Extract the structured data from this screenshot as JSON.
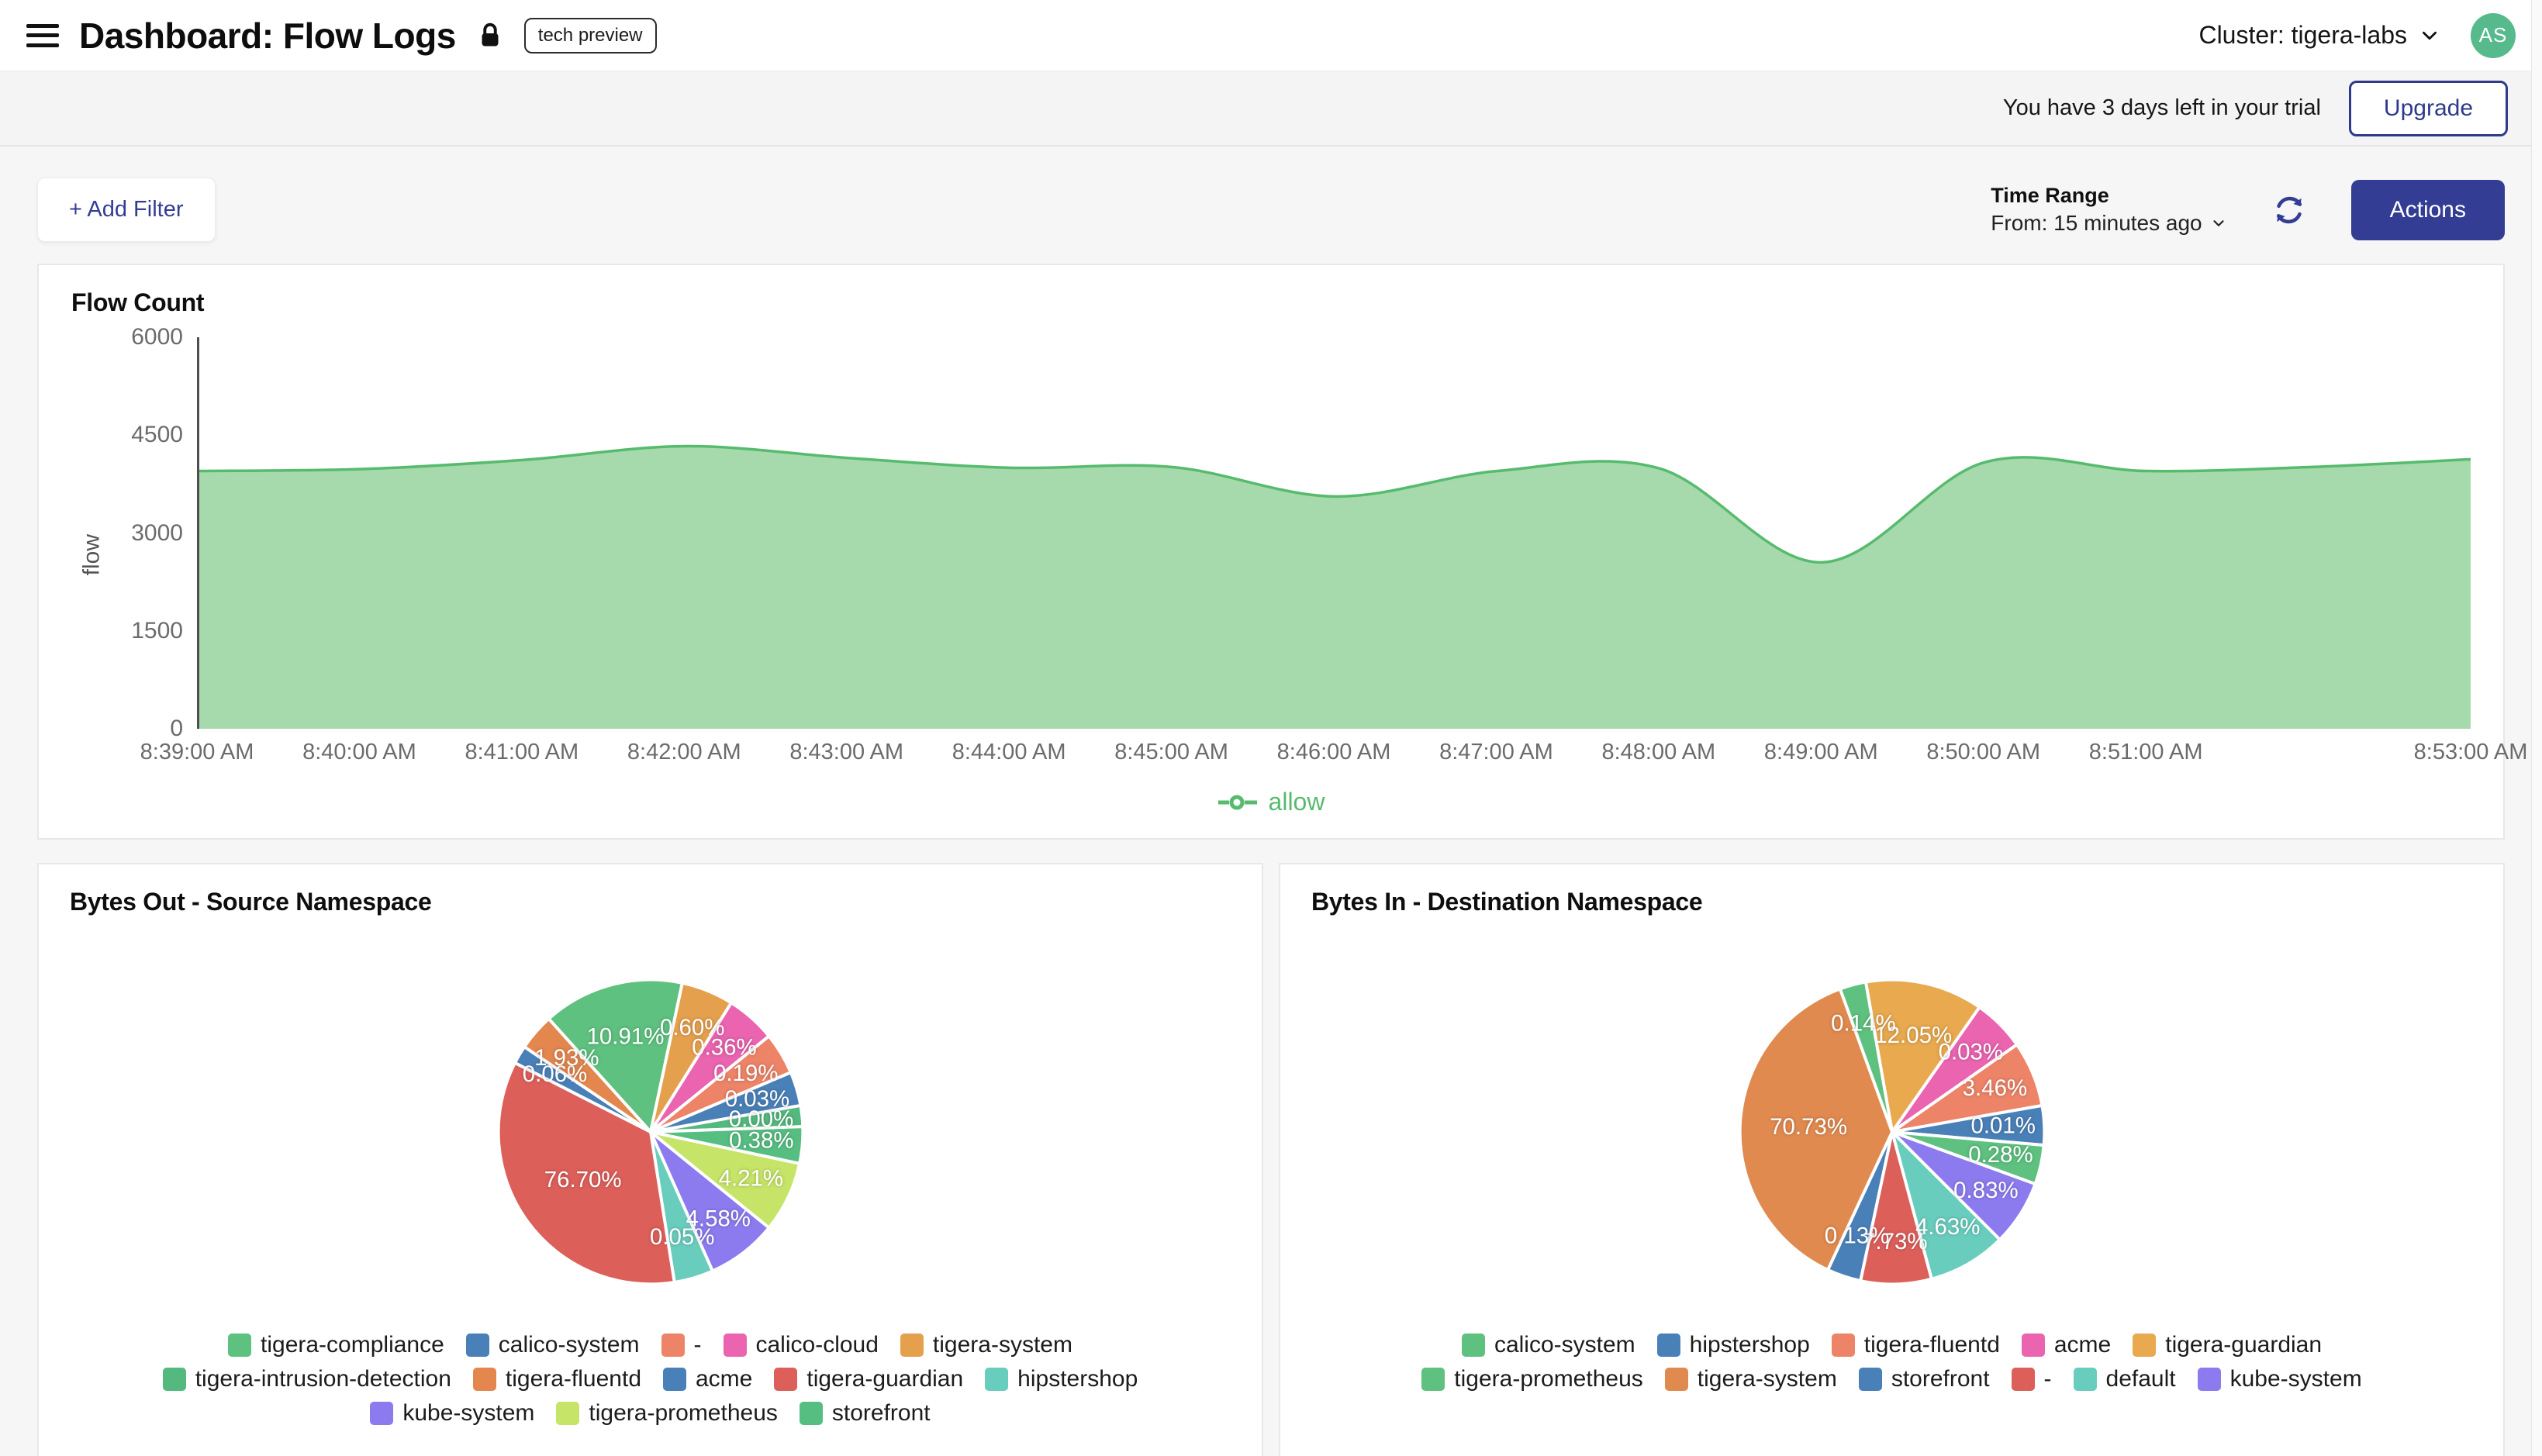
{
  "header": {
    "title": "Dashboard: Flow Logs",
    "badge": "tech preview",
    "cluster_label": "Cluster: tigera-labs",
    "avatar_initials": "AS"
  },
  "trial": {
    "message": "You have 3 days left in your trial",
    "upgrade_label": "Upgrade"
  },
  "toolbar": {
    "add_filter_label": "+ Add Filter",
    "time_range_title": "Time Range",
    "time_range_value": "From: 15 minutes ago",
    "actions_label": "Actions"
  },
  "colors": {
    "accent_navy": "#333d94",
    "avatar_green": "#56ba8d",
    "allow_green": "#57bb6e",
    "area_fill": "#a6daad"
  },
  "chart_data": [
    {
      "type": "area",
      "title": "Flow Count",
      "ylabel": "flow",
      "ylim": [
        0,
        6000
      ],
      "yticks": [
        6000,
        4500,
        3000,
        1500,
        0
      ],
      "grid": false,
      "legend_position": "bottom",
      "x_minutes_span": 14,
      "x_tick_labels": [
        "8:39:00 AM",
        "8:40:00 AM",
        "8:41:00 AM",
        "8:42:00 AM",
        "8:43:00 AM",
        "8:44:00 AM",
        "8:45:00 AM",
        "8:46:00 AM",
        "8:47:00 AM",
        "8:48:00 AM",
        "8:49:00 AM",
        "8:50:00 AM",
        "8:51:00 AM",
        "8:53:00 AM"
      ],
      "x_tick_positions": [
        0,
        1,
        2,
        3,
        4,
        5,
        6,
        7,
        8,
        9,
        10,
        11,
        12,
        14
      ],
      "series": [
        {
          "name": "allow",
          "color": "#57bb6e",
          "fill": "#a6daad",
          "x": [
            0,
            1,
            2,
            3,
            4,
            5,
            6,
            7,
            8,
            9,
            10,
            11,
            12,
            13,
            14
          ],
          "values": [
            3950,
            3980,
            4120,
            4330,
            4150,
            4000,
            4010,
            3560,
            3950,
            3990,
            2550,
            4080,
            3950,
            4010,
            4130
          ]
        }
      ],
      "legend": {
        "label": "allow",
        "color": "#57bb6e"
      }
    },
    {
      "type": "pie",
      "title": "Bytes Out - Source Namespace",
      "start_angle": -42,
      "slices": [
        {
          "name": "tigera-compliance",
          "pct": "10.91%",
          "value": 10.91,
          "color": "#5ec17f",
          "sweep": 54
        },
        {
          "name": "tigera-system",
          "pct": "0.60%",
          "value": 0.6,
          "color": "#e5a04e",
          "sweep": 20
        },
        {
          "name": "calico-cloud",
          "pct": "0.36%",
          "value": 0.36,
          "color": "#ea64b0",
          "sweep": 19
        },
        {
          "name": "-",
          "pct": "0.19%",
          "value": 0.19,
          "color": "#ed8468",
          "sweep": 16
        },
        {
          "name": "acme",
          "pct": "0.03%",
          "value": 0.03,
          "color": "#4a80b8",
          "sweep": 13
        },
        {
          "name": "tigera-intrusion-detection",
          "pct": "0.00%",
          "value": 0.0,
          "color": "#54b97e",
          "sweep": 8
        },
        {
          "name": "storefront",
          "pct": "0.38%",
          "value": 0.38,
          "color": "#57be82",
          "sweep": 14
        },
        {
          "name": "tigera-prometheus",
          "pct": "4.21%",
          "value": 4.21,
          "color": "#c6e468",
          "sweep": 27
        },
        {
          "name": "kube-system",
          "pct": "4.58%",
          "value": 4.58,
          "color": "#8c7bee",
          "sweep": 27
        },
        {
          "name": "hipstershop",
          "pct": "0.05%",
          "value": 0.05,
          "color": "#69cdbe",
          "sweep": 15
        },
        {
          "name": "tigera-guardian",
          "pct": "76.70%",
          "value": 76.7,
          "color": "#dc5f5a",
          "sweep": 126
        },
        {
          "name": "calico-system",
          "pct": "0.06%",
          "value": 0.06,
          "color": "#4a80b8",
          "sweep": 7
        },
        {
          "name": "tigera-fluentd",
          "pct": "1.93%",
          "value": 1.93,
          "color": "#e3874f",
          "sweep": 14
        }
      ],
      "legend_order": [
        "tigera-compliance",
        "calico-system",
        "-",
        "calico-cloud",
        "tigera-system",
        "tigera-intrusion-detection",
        "tigera-fluentd",
        "acme",
        "tigera-guardian",
        "hipstershop",
        "kube-system",
        "tigera-prometheus",
        "storefront"
      ]
    },
    {
      "type": "pie",
      "title": "Bytes In - Destination Namespace",
      "start_angle": -10,
      "slices": [
        {
          "name": "tigera-guardian",
          "pct": "12.05%",
          "value": 12.05,
          "color": "#e8a94f",
          "sweep": 45
        },
        {
          "name": "acme",
          "pct": "0.03%",
          "value": 0.03,
          "color": "#ea64b0",
          "sweep": 20
        },
        {
          "name": "tigera-fluentd",
          "pct": "3.46%",
          "value": 3.46,
          "color": "#ed8468",
          "sweep": 25
        },
        {
          "name": "hipstershop",
          "pct": "0.01%",
          "value": 0.01,
          "color": "#4a80b8",
          "sweep": 15
        },
        {
          "name": "tigera-prometheus",
          "pct": "0.28%",
          "value": 0.28,
          "color": "#5ec17f",
          "sweep": 15
        },
        {
          "name": "kube-system",
          "pct": "0.83%",
          "value": 0.83,
          "color": "#8c7bee",
          "sweep": 25
        },
        {
          "name": "default",
          "pct": "4.63%",
          "value": 4.63,
          "color": "#69cdbe",
          "sweep": 30
        },
        {
          "name": "-",
          "pct": "7.73%",
          "value": 7.73,
          "color": "#dc5f5a",
          "sweep": 27
        },
        {
          "name": "storefront",
          "pct": "0.13%",
          "value": 0.13,
          "color": "#4a80b8",
          "sweep": 13
        },
        {
          "name": "tigera-system",
          "pct": "70.73%",
          "value": 70.73,
          "color": "#e08a4f",
          "sweep": 135
        },
        {
          "name": "calico-system",
          "pct": "0.14%",
          "value": 0.14,
          "color": "#5ec17f",
          "sweep": 10
        }
      ],
      "legend_order": [
        "calico-system",
        "hipstershop",
        "tigera-fluentd",
        "acme",
        "tigera-guardian",
        "tigera-prometheus",
        "tigera-system",
        "storefront",
        "-",
        "default",
        "kube-system"
      ]
    }
  ]
}
